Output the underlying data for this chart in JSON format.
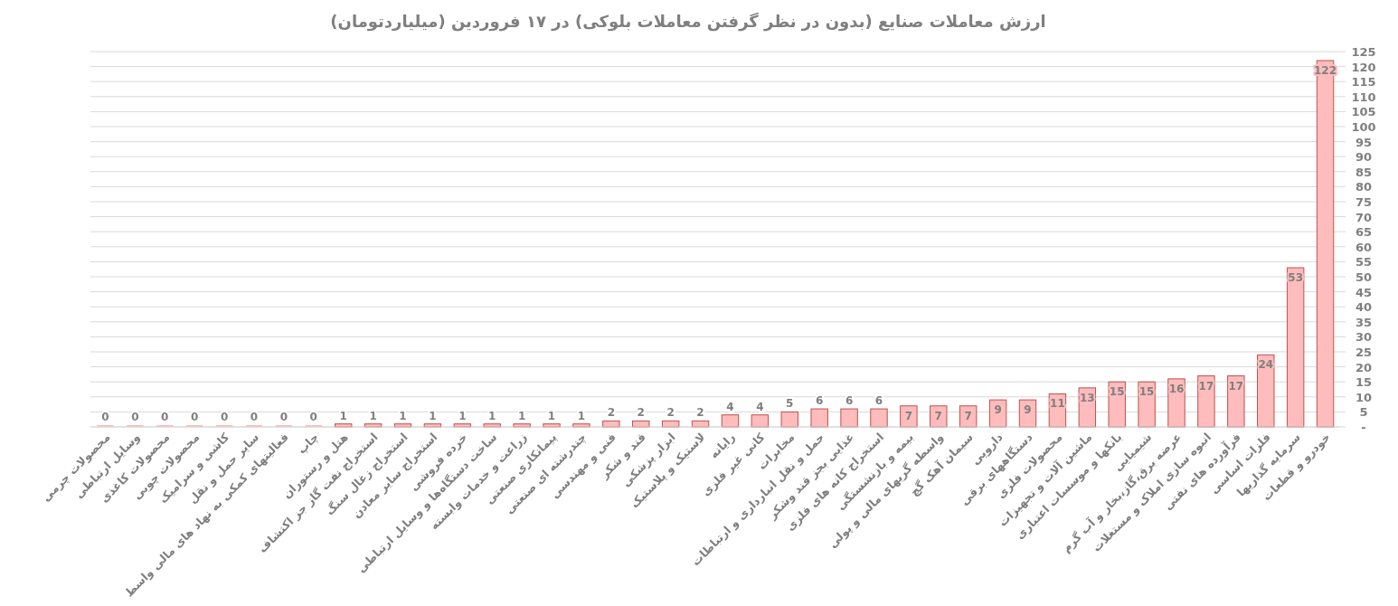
{
  "chart_data": {
    "type": "bar",
    "title": "ارزش معاملات صنایع (بدون در نظر گرفتن معاملات بلوکی) در ۱۷ فروردین (میلیاردتومان)",
    "categories": [
      "محصولات چرمی",
      "وسایل ارتباطی",
      "محصولات کاغذی",
      "محصولات چوبی",
      "کاشی و سرامیک",
      "سایر حمل و نقل",
      "فعالیتهای کمکی به نهاد های مالی واسط",
      "چاپ",
      "هتل و رستوران",
      "استخراج نفت گاز جز اکتشاف",
      "استخراج زغال سنگ",
      "استخراج سایر معادن",
      "خرده فروشی",
      "ساخت دستگاه‌ها و وسایل ارتباطی",
      "زراعت و خدمات وابسته",
      "پیمانکاری صنعتی",
      "چندرشته ای صنعتی",
      "فنی و مهندسی",
      "قند و شکر",
      "ابزار پزشکی",
      "لاستیک و پلاستیک",
      "رایانه",
      "کانی غیر فلزی",
      "مخابرات",
      "حمل و نقل انبارداری و ارتباطات",
      "غذایی بجز قند وشکر",
      "استخراج کانه های فلزی",
      "بیمه و بازنشستگی",
      "واسطه گریهای مالی و پولی",
      "سیمان آهک گچ",
      "دارویی",
      "دستگاههای برقی",
      "محصولات فلزی",
      "ماشین آلات و تجهیزات",
      "بانکها و موسسات اعتباری",
      "شیمیایی",
      "عرضه برق،گاز،بخار و آب گرم",
      "انبوه سازی املاک و مستغلات",
      "فرآورده های نفتی",
      "فلزات اساسی",
      "سرمایه گذاریها",
      "خودرو و قطعات"
    ],
    "values": [
      0,
      0,
      0,
      0,
      0,
      0,
      0,
      0,
      1,
      1,
      1,
      1,
      1,
      1,
      1,
      1,
      1,
      2,
      2,
      2,
      2,
      4,
      4,
      5,
      6,
      6,
      6,
      7,
      7,
      7,
      9,
      9,
      11,
      13,
      15,
      15,
      16,
      17,
      17,
      24,
      53,
      122
    ],
    "color": "#ffbcbc",
    "ylim": [
      0,
      125
    ],
    "yticks": [
      {
        "value": 0,
        "label": "-"
      },
      5,
      10,
      15,
      20,
      25,
      30,
      35,
      40,
      45,
      50,
      55,
      60,
      65,
      70,
      75,
      80,
      85,
      90,
      95,
      100,
      105,
      110,
      115,
      120,
      125
    ],
    "grid": "y",
    "data_labels": true
  }
}
